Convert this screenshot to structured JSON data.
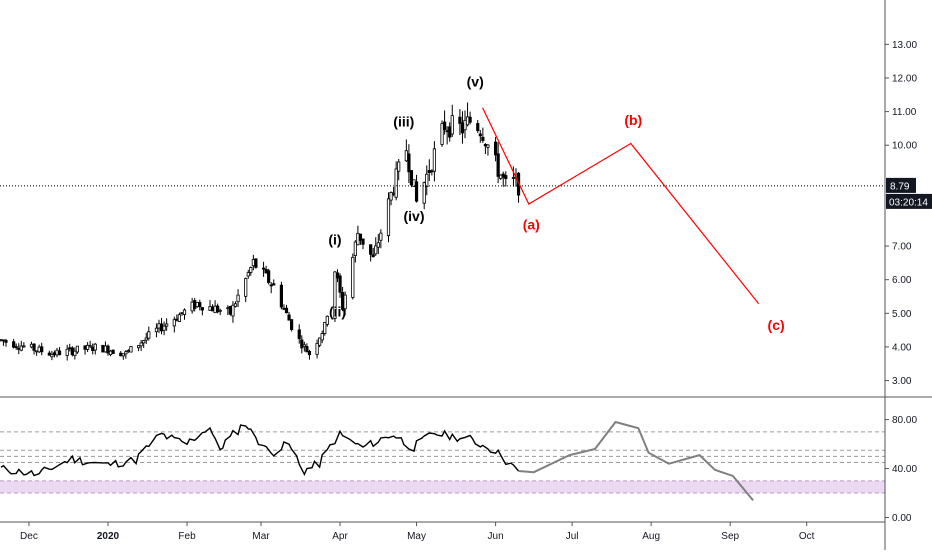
{
  "chart_data": [
    {
      "type": "candlestick",
      "y_ticks": [
        "13.00",
        "12.00",
        "11.00",
        "10.00",
        "7.00",
        "6.00",
        "5.00",
        "4.00",
        "3.00"
      ],
      "y_range": [
        2.6,
        14.2
      ],
      "x_ticks": [
        {
          "label": "Dec",
          "date": "2019-12-01",
          "bold": false
        },
        {
          "label": "2020",
          "date": "2020-01-01",
          "bold": true
        },
        {
          "label": "Feb",
          "date": "2020-02-01",
          "bold": false
        },
        {
          "label": "Mar",
          "date": "2020-03-01",
          "bold": false
        },
        {
          "label": "Apr",
          "date": "2020-04-01",
          "bold": false
        },
        {
          "label": "May",
          "date": "2020-05-01",
          "bold": false
        },
        {
          "label": "Jun",
          "date": "2020-06-01",
          "bold": false
        },
        {
          "label": "Jul",
          "date": "2020-07-01",
          "bold": false
        },
        {
          "label": "Aug",
          "date": "2020-08-01",
          "bold": false
        },
        {
          "label": "Sep",
          "date": "2020-09-01",
          "bold": false
        },
        {
          "label": "Oct",
          "date": "2020-10-01",
          "bold": false
        }
      ],
      "last_price": {
        "value": 8.79,
        "label": "8.79",
        "countdown": "03:20:14"
      },
      "price_anchors": [
        {
          "date": "2019-11-20",
          "value": 4.2
        },
        {
          "date": "2019-12-10",
          "value": 3.8
        },
        {
          "date": "2019-12-28",
          "value": 4.0
        },
        {
          "date": "2020-01-08",
          "value": 3.8
        },
        {
          "date": "2020-01-20",
          "value": 4.5
        },
        {
          "date": "2020-02-05",
          "value": 5.3
        },
        {
          "date": "2020-02-18",
          "value": 5.0
        },
        {
          "date": "2020-02-27",
          "value": 6.5
        },
        {
          "date": "2020-03-06",
          "value": 5.8
        },
        {
          "date": "2020-03-15",
          "value": 4.3
        },
        {
          "date": "2020-03-20",
          "value": 3.8
        },
        {
          "date": "2020-03-26",
          "value": 4.6
        },
        {
          "date": "2020-03-30",
          "value": 6.3
        },
        {
          "date": "2020-04-02",
          "value": 5.2
        },
        {
          "date": "2020-04-08",
          "value": 7.4
        },
        {
          "date": "2020-04-14",
          "value": 6.6
        },
        {
          "date": "2020-04-22",
          "value": 8.8
        },
        {
          "date": "2020-04-27",
          "value": 9.9
        },
        {
          "date": "2020-05-01",
          "value": 8.3
        },
        {
          "date": "2020-05-06",
          "value": 9.3
        },
        {
          "date": "2020-05-12",
          "value": 10.6
        },
        {
          "date": "2020-05-19",
          "value": 10.5
        },
        {
          "date": "2020-05-23",
          "value": 10.8
        },
        {
          "date": "2020-05-27",
          "value": 10.4
        },
        {
          "date": "2020-05-31",
          "value": 9.6
        },
        {
          "date": "2020-06-05",
          "value": 8.8
        },
        {
          "date": "2020-06-08",
          "value": 8.9
        },
        {
          "date": "2020-06-10",
          "value": 8.79
        }
      ],
      "projection": {
        "points": [
          {
            "date": "2020-05-27",
            "value": 11.1
          },
          {
            "date": "2020-06-14",
            "value": 8.25
          },
          {
            "date": "2020-07-24",
            "value": 10.05
          },
          {
            "date": "2020-09-12",
            "value": 5.3
          }
        ],
        "color": "#ff0000"
      },
      "wave_labels": [
        {
          "text": "(i)",
          "date": "2020-03-30",
          "value": 7.05,
          "color": "black"
        },
        {
          "text": "(ii)",
          "date": "2020-03-31",
          "value": 4.9,
          "color": "black"
        },
        {
          "text": "(iii)",
          "date": "2020-04-26",
          "value": 10.55,
          "color": "black"
        },
        {
          "text": "(iv)",
          "date": "2020-04-30",
          "value": 7.75,
          "color": "black"
        },
        {
          "text": "(v)",
          "date": "2020-05-24",
          "value": 11.75,
          "color": "black"
        },
        {
          "text": "(a)",
          "date": "2020-06-15",
          "value": 7.5,
          "color": "red"
        },
        {
          "text": "(b)",
          "date": "2020-07-25",
          "value": 10.6,
          "color": "red"
        },
        {
          "text": "(c)",
          "date": "2020-09-19",
          "value": 4.5,
          "color": "red"
        }
      ]
    },
    {
      "type": "line",
      "y_ticks": [
        "80.00",
        "40.00",
        "0.00"
      ],
      "y_range": [
        -2,
        96
      ],
      "band": [
        20,
        30
      ],
      "dashed_levels": [
        70,
        50,
        55,
        45
      ],
      "history": [
        {
          "date": "2019-11-20",
          "value": 40
        },
        {
          "date": "2019-12-05",
          "value": 35
        },
        {
          "date": "2019-12-18",
          "value": 48
        },
        {
          "date": "2020-01-01",
          "value": 43
        },
        {
          "date": "2020-01-12",
          "value": 47
        },
        {
          "date": "2020-01-22",
          "value": 68
        },
        {
          "date": "2020-02-01",
          "value": 60
        },
        {
          "date": "2020-02-10",
          "value": 74
        },
        {
          "date": "2020-02-14",
          "value": 56
        },
        {
          "date": "2020-02-24",
          "value": 77
        },
        {
          "date": "2020-03-05",
          "value": 52
        },
        {
          "date": "2020-03-12",
          "value": 60
        },
        {
          "date": "2020-03-18",
          "value": 38
        },
        {
          "date": "2020-03-24",
          "value": 44
        },
        {
          "date": "2020-04-01",
          "value": 68
        },
        {
          "date": "2020-04-10",
          "value": 57
        },
        {
          "date": "2020-04-22",
          "value": 68
        },
        {
          "date": "2020-04-30",
          "value": 57
        },
        {
          "date": "2020-05-08",
          "value": 69
        },
        {
          "date": "2020-05-22",
          "value": 64
        },
        {
          "date": "2020-06-01",
          "value": 55
        },
        {
          "date": "2020-06-10",
          "value": 38
        }
      ],
      "forecast": [
        {
          "date": "2020-06-10",
          "value": 38
        },
        {
          "date": "2020-06-16",
          "value": 37
        },
        {
          "date": "2020-06-30",
          "value": 51
        },
        {
          "date": "2020-07-10",
          "value": 56
        },
        {
          "date": "2020-07-18",
          "value": 78
        },
        {
          "date": "2020-07-27",
          "value": 73
        },
        {
          "date": "2020-07-31",
          "value": 53
        },
        {
          "date": "2020-08-08",
          "value": 44
        },
        {
          "date": "2020-08-20",
          "value": 51
        },
        {
          "date": "2020-08-26",
          "value": 39
        },
        {
          "date": "2020-09-02",
          "value": 34
        },
        {
          "date": "2020-09-10",
          "value": 14
        }
      ],
      "colors": {
        "history": "#000000",
        "forecast": "#808080",
        "band": "#ead9f0",
        "dash": "#9a9a9a"
      }
    }
  ]
}
